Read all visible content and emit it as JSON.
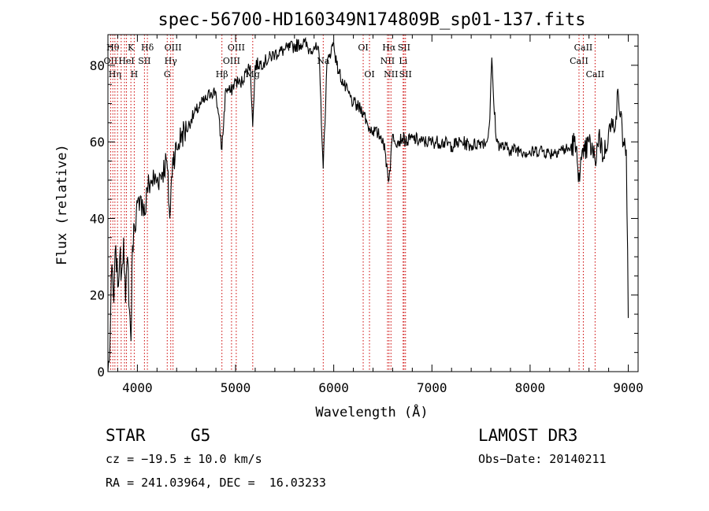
{
  "chart_data": {
    "type": "line",
    "title": "spec-56700-HD160349N174809B_sp01-137.fits",
    "xlabel": "Wavelength (Å)",
    "ylabel": "Flux (relative)",
    "xlim": [
      3700,
      9100
    ],
    "ylim": [
      0,
      88
    ],
    "xticks": [
      4000,
      5000,
      6000,
      7000,
      8000,
      9000
    ],
    "yticks": [
      0,
      20,
      40,
      60,
      80
    ],
    "series": [
      {
        "x": [
          3700,
          3720,
          3740,
          3760,
          3780,
          3800,
          3820,
          3840,
          3860,
          3880,
          3900,
          3920,
          3935,
          3950,
          3970,
          3990,
          4000,
          4020,
          4050,
          4080,
          4100,
          4150,
          4200,
          4250,
          4300,
          4330,
          4360,
          4400,
          4450,
          4500,
          4550,
          4600,
          4650,
          4700,
          4750,
          4800,
          4861,
          4900,
          4950,
          5000,
          5050,
          5100,
          5150,
          5175,
          5200,
          5300,
          5400,
          5500,
          5600,
          5700,
          5750,
          5800,
          5850,
          5893,
          5930,
          5960,
          6000,
          6030,
          6100,
          6200,
          6300,
          6350,
          6400,
          6450,
          6500,
          6563,
          6600,
          6650,
          6700,
          6750,
          6800,
          6900,
          7000,
          7100,
          7200,
          7300,
          7400,
          7500,
          7560,
          7590,
          7610,
          7630,
          7660,
          7700,
          7800,
          7900,
          8000,
          8100,
          8200,
          8300,
          8400,
          8450,
          8498,
          8542,
          8600,
          8662,
          8700,
          8750,
          8800,
          8850,
          8900,
          8950,
          8980,
          9000
        ],
        "values": [
          0,
          6,
          28,
          18,
          33,
          22,
          30,
          26,
          35,
          18,
          30,
          16,
          8,
          33,
          38,
          42,
          44,
          42,
          45,
          41,
          48,
          50,
          50,
          52,
          55,
          40,
          56,
          58,
          62,
          63,
          66,
          68,
          70,
          71,
          73,
          73,
          58,
          74,
          73,
          76,
          75,
          78,
          80,
          64,
          80,
          81,
          83,
          84,
          85,
          86,
          84,
          85,
          83,
          53,
          80,
          83,
          86,
          80,
          75,
          70,
          68,
          64,
          63,
          62,
          61,
          50,
          62,
          60,
          61,
          60,
          61,
          60,
          60,
          60,
          59,
          60,
          59,
          60,
          60,
          66,
          82,
          70,
          60,
          59,
          58,
          58,
          57,
          58,
          57,
          58,
          58,
          60,
          52,
          56,
          60,
          55,
          62,
          56,
          63,
          64,
          72,
          60,
          58,
          14
        ]
      }
    ],
    "line_markers": [
      {
        "x": 3727,
        "label": "OII",
        "row": 2
      },
      {
        "x": 3750,
        "label": "Hθ",
        "row": 1
      },
      {
        "x": 3771,
        "label": "Hη",
        "row": 3
      },
      {
        "x": 3798,
        "label": "",
        "row": 0
      },
      {
        "x": 3835,
        "label": "",
        "row": 0
      },
      {
        "x": 3869,
        "label": "",
        "row": 0
      },
      {
        "x": 3889,
        "label": "HeI",
        "row": 2
      },
      {
        "x": 3934,
        "label": "K",
        "row": 1
      },
      {
        "x": 3968,
        "label": "H",
        "row": 3
      },
      {
        "x": 4072,
        "label": "SII",
        "row": 2
      },
      {
        "x": 4102,
        "label": "Hδ",
        "row": 1
      },
      {
        "x": 4304,
        "label": "G",
        "row": 3
      },
      {
        "x": 4340,
        "label": "Hγ",
        "row": 2
      },
      {
        "x": 4363,
        "label": "OIII",
        "row": 1
      },
      {
        "x": 4861,
        "label": "Hβ",
        "row": 3
      },
      {
        "x": 4959,
        "label": "OIII",
        "row": 2
      },
      {
        "x": 5007,
        "label": "OIII",
        "row": 1
      },
      {
        "x": 5175,
        "label": "Mg",
        "row": 3
      },
      {
        "x": 5893,
        "label": "Na",
        "row": 2
      },
      {
        "x": 6300,
        "label": "OI",
        "row": 1
      },
      {
        "x": 6364,
        "label": "OI",
        "row": 3
      },
      {
        "x": 6548,
        "label": "NII",
        "row": 2
      },
      {
        "x": 6563,
        "label": "Hα",
        "row": 1
      },
      {
        "x": 6583,
        "label": "NII",
        "row": 3
      },
      {
        "x": 6707,
        "label": "Li",
        "row": 2
      },
      {
        "x": 6716,
        "label": "SII",
        "row": 1
      },
      {
        "x": 6731,
        "label": "SII",
        "row": 3
      },
      {
        "x": 8498,
        "label": "CaII",
        "row": 2
      },
      {
        "x": 8542,
        "label": "CaII",
        "row": 1
      },
      {
        "x": 8662,
        "label": "CaII",
        "row": 3
      }
    ]
  },
  "info": {
    "class": "STAR",
    "subclass": "G5",
    "survey": "LAMOST DR3",
    "cz": "cz = −19.5 ± 10.0 km/s",
    "obs_date": "Obs−Date: 20140211",
    "coords": "RA = 241.03964, DEC =  16.03233"
  },
  "colors": {
    "spectrum": "#000000",
    "line_markers": "#cc0000",
    "axes": "#000000"
  }
}
